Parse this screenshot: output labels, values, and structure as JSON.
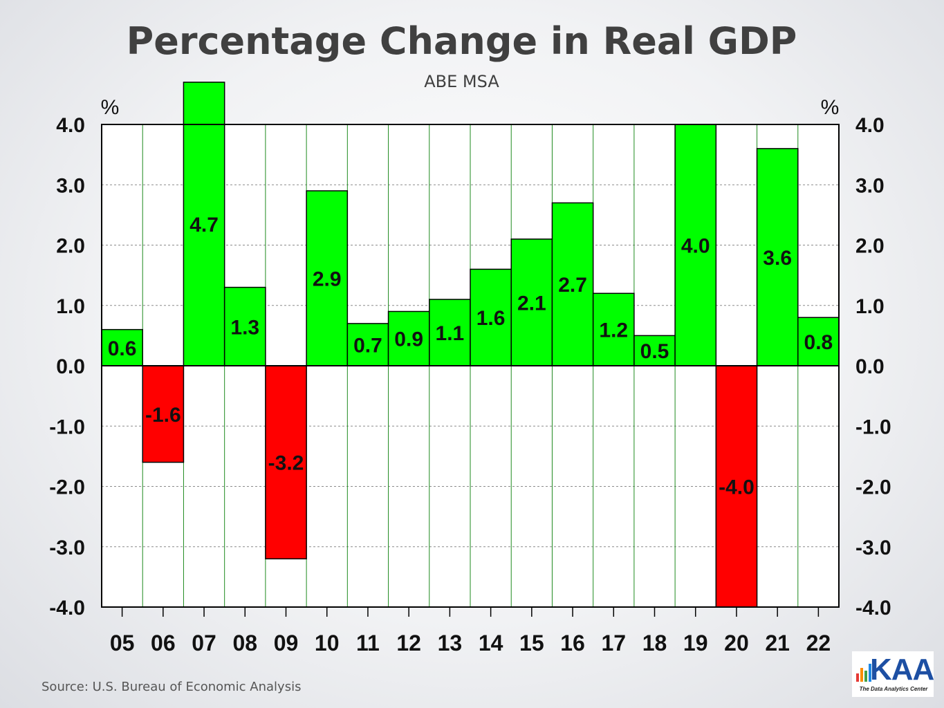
{
  "header": {
    "title": "Percentage Change in Real GDP",
    "subtitle": "ABE MSA"
  },
  "footer": {
    "source": "Source:  U.S. Bureau of Economic Analysis"
  },
  "logo": {
    "text": "KAA",
    "tagline": "The Data Analytics Center"
  },
  "chart_data": {
    "type": "bar",
    "title": "Percentage Change in Real GDP",
    "subtitle": "ABE MSA",
    "left_unit_label": "%",
    "right_unit_label": "%",
    "categories": [
      "05",
      "06",
      "07",
      "08",
      "09",
      "10",
      "11",
      "12",
      "13",
      "14",
      "15",
      "16",
      "17",
      "18",
      "19",
      "20",
      "21",
      "22"
    ],
    "values": [
      0.6,
      -1.6,
      4.7,
      1.3,
      -3.2,
      2.9,
      0.7,
      0.9,
      1.1,
      1.6,
      2.1,
      2.7,
      1.2,
      0.5,
      4.0,
      -4.0,
      3.6,
      0.8
    ],
    "data_labels": [
      "0.6",
      "-1.6",
      "4.7",
      "1.3",
      "-3.2",
      "2.9",
      "0.7",
      "0.9",
      "1.1",
      "1.6",
      "2.1",
      "2.7",
      "1.2",
      "0.5",
      "4.0",
      "-4.0",
      "3.6",
      "0.8"
    ],
    "ylim": [
      -4.0,
      4.0
    ],
    "yticks": [
      4.0,
      3.0,
      2.0,
      1.0,
      0.0,
      -1.0,
      -2.0,
      -3.0,
      -4.0
    ],
    "ytick_labels": [
      "4.0",
      "3.0",
      "2.0",
      "1.0",
      "0.0",
      "-1.0",
      "-2.0",
      "-3.0",
      "-4.0"
    ],
    "grid": true,
    "y_axes": "both",
    "colors": {
      "positive": "#00ff00",
      "negative": "#ff0000",
      "gridline": "#8a8a8a",
      "separator": "#1e8a1e"
    }
  }
}
